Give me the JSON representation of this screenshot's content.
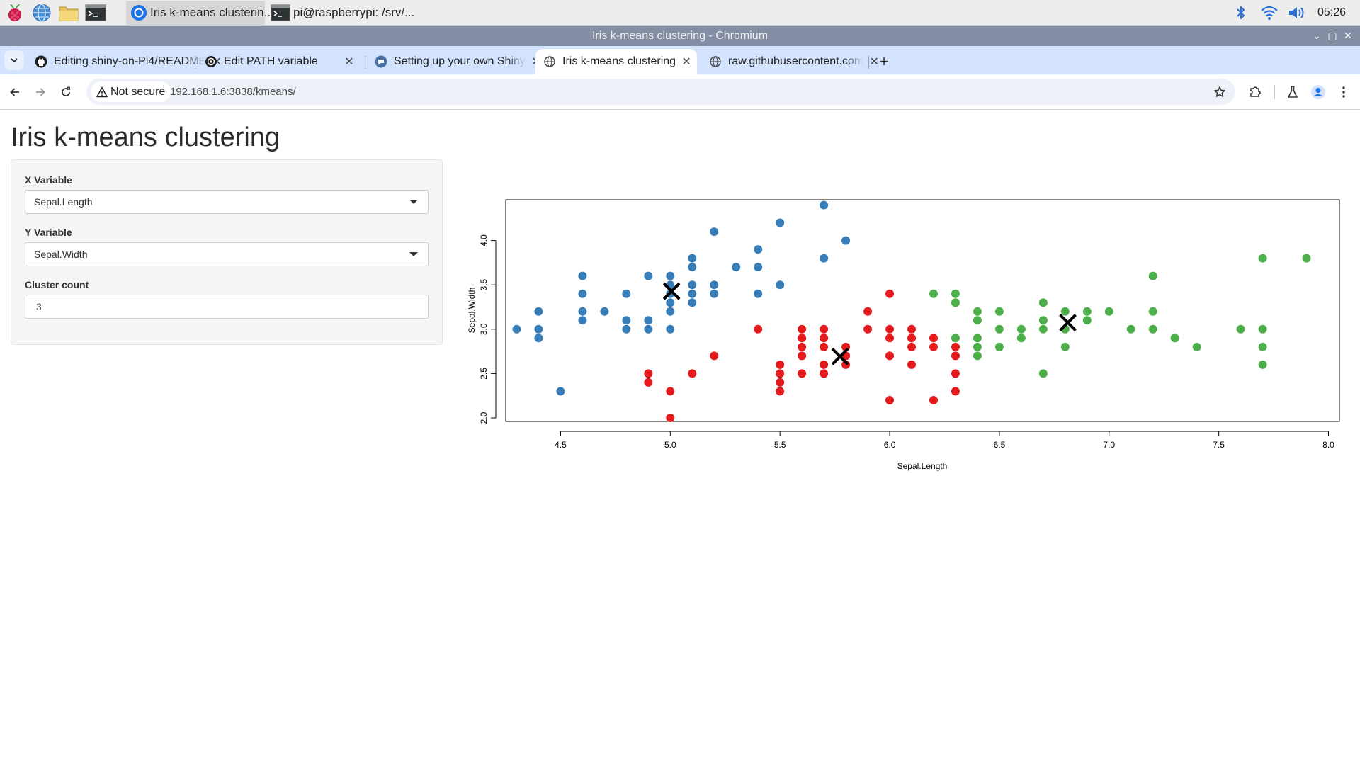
{
  "taskbar": {
    "launchers": [
      "raspberry-icon",
      "browser-globe-icon",
      "folder-icon",
      "terminal-icon"
    ],
    "tasks": [
      {
        "label": "Iris k-means clusterin...",
        "icon": "chromium-icon",
        "active": true
      },
      {
        "label": "pi@raspberrypi: /srv/...",
        "icon": "terminal-icon",
        "active": false
      }
    ],
    "tray": [
      "bluetooth-icon",
      "wifi-icon",
      "volume-icon"
    ],
    "clock": "05:26"
  },
  "window": {
    "title": "Iris k-means clustering - Chromium",
    "controls": [
      "⌄",
      "▢",
      "✕"
    ]
  },
  "tabs": [
    {
      "title": "Editing shiny-on-Pi4/README",
      "icon": "github-icon",
      "active": false
    },
    {
      "title": "Edit PATH variable",
      "icon": "openai-icon",
      "active": false
    },
    {
      "title": "Setting up your own Shiny",
      "icon": "chat-bubble-icon",
      "active": false
    },
    {
      "title": "Iris k-means clustering",
      "icon": "globe-icon",
      "active": true
    },
    {
      "title": "raw.githubusercontent.com",
      "icon": "globe-icon",
      "active": false
    }
  ],
  "toolbar": {
    "security_label": "Not secure",
    "url": "192.168.1.6:3838/kmeans/"
  },
  "app": {
    "title": "Iris k-means clustering",
    "x_label": "X Variable",
    "x_value": "Sepal.Length",
    "y_label": "Y Variable",
    "y_value": "Sepal.Width",
    "cluster_label": "Cluster count",
    "cluster_value": "3"
  },
  "chart_data": {
    "type": "scatter",
    "xlabel": "Sepal.Length",
    "ylabel": "Sepal.Width",
    "xlim": [
      4.25,
      8.05
    ],
    "ylim": [
      1.96,
      4.46
    ],
    "x_ticks": [
      "4.5",
      "5.0",
      "5.5",
      "6.0",
      "6.5",
      "7.0",
      "7.5",
      "8.0"
    ],
    "y_ticks": [
      "2.0",
      "2.5",
      "3.0",
      "3.5",
      "4.0"
    ],
    "series": [
      {
        "color": "#377eb8",
        "points": [
          [
            4.3,
            3.0
          ],
          [
            4.4,
            2.9
          ],
          [
            4.4,
            3.0
          ],
          [
            4.4,
            3.2
          ],
          [
            4.5,
            2.3
          ],
          [
            4.6,
            3.1
          ],
          [
            4.6,
            3.2
          ],
          [
            4.6,
            3.4
          ],
          [
            4.6,
            3.6
          ],
          [
            4.7,
            3.2
          ],
          [
            4.8,
            3.0
          ],
          [
            4.8,
            3.1
          ],
          [
            4.8,
            3.4
          ],
          [
            4.9,
            3.0
          ],
          [
            4.9,
            3.1
          ],
          [
            4.9,
            3.6
          ],
          [
            5.0,
            3.0
          ],
          [
            5.0,
            3.2
          ],
          [
            5.0,
            3.3
          ],
          [
            5.0,
            3.4
          ],
          [
            5.0,
            3.5
          ],
          [
            5.0,
            3.6
          ],
          [
            5.1,
            3.3
          ],
          [
            5.1,
            3.4
          ],
          [
            5.1,
            3.5
          ],
          [
            5.1,
            3.7
          ],
          [
            5.1,
            3.8
          ],
          [
            5.2,
            3.4
          ],
          [
            5.2,
            3.5
          ],
          [
            5.2,
            4.1
          ],
          [
            5.3,
            3.7
          ],
          [
            5.4,
            3.4
          ],
          [
            5.4,
            3.7
          ],
          [
            5.4,
            3.9
          ],
          [
            5.5,
            3.5
          ],
          [
            5.5,
            4.2
          ],
          [
            5.7,
            3.8
          ],
          [
            5.7,
            4.4
          ],
          [
            5.8,
            4.0
          ]
        ]
      },
      {
        "color": "#e41a1c",
        "points": [
          [
            4.9,
            2.4
          ],
          [
            4.9,
            2.5
          ],
          [
            5.0,
            2.0
          ],
          [
            5.0,
            2.3
          ],
          [
            5.1,
            2.5
          ],
          [
            5.2,
            2.7
          ],
          [
            5.4,
            3.0
          ],
          [
            5.5,
            2.3
          ],
          [
            5.5,
            2.4
          ],
          [
            5.5,
            2.5
          ],
          [
            5.5,
            2.6
          ],
          [
            5.6,
            2.5
          ],
          [
            5.6,
            2.7
          ],
          [
            5.6,
            2.8
          ],
          [
            5.6,
            2.9
          ],
          [
            5.6,
            3.0
          ],
          [
            5.7,
            2.5
          ],
          [
            5.7,
            2.6
          ],
          [
            5.7,
            2.8
          ],
          [
            5.7,
            2.9
          ],
          [
            5.7,
            3.0
          ],
          [
            5.8,
            2.6
          ],
          [
            5.8,
            2.7
          ],
          [
            5.8,
            2.8
          ],
          [
            5.9,
            3.0
          ],
          [
            5.9,
            3.2
          ],
          [
            6.0,
            2.2
          ],
          [
            6.0,
            2.7
          ],
          [
            6.0,
            2.9
          ],
          [
            6.0,
            3.0
          ],
          [
            6.0,
            3.4
          ],
          [
            6.1,
            2.6
          ],
          [
            6.1,
            2.8
          ],
          [
            6.1,
            2.9
          ],
          [
            6.1,
            3.0
          ],
          [
            6.2,
            2.2
          ],
          [
            6.2,
            2.8
          ],
          [
            6.2,
            2.9
          ],
          [
            6.3,
            2.3
          ],
          [
            6.3,
            2.5
          ],
          [
            6.3,
            2.7
          ],
          [
            6.3,
            2.8
          ]
        ]
      },
      {
        "color": "#4daf4a",
        "points": [
          [
            6.2,
            3.4
          ],
          [
            6.3,
            2.9
          ],
          [
            6.3,
            3.3
          ],
          [
            6.3,
            3.4
          ],
          [
            6.4,
            2.7
          ],
          [
            6.4,
            2.8
          ],
          [
            6.4,
            2.9
          ],
          [
            6.4,
            3.1
          ],
          [
            6.4,
            3.2
          ],
          [
            6.5,
            2.8
          ],
          [
            6.5,
            3.0
          ],
          [
            6.5,
            3.2
          ],
          [
            6.6,
            2.9
          ],
          [
            6.6,
            3.0
          ],
          [
            6.7,
            2.5
          ],
          [
            6.7,
            3.0
          ],
          [
            6.7,
            3.1
          ],
          [
            6.7,
            3.3
          ],
          [
            6.8,
            2.8
          ],
          [
            6.8,
            3.0
          ],
          [
            6.8,
            3.2
          ],
          [
            6.9,
            3.1
          ],
          [
            6.9,
            3.2
          ],
          [
            7.0,
            3.2
          ],
          [
            7.1,
            3.0
          ],
          [
            7.2,
            3.0
          ],
          [
            7.2,
            3.2
          ],
          [
            7.2,
            3.6
          ],
          [
            7.3,
            2.9
          ],
          [
            7.4,
            2.8
          ],
          [
            7.6,
            3.0
          ],
          [
            7.7,
            2.6
          ],
          [
            7.7,
            2.8
          ],
          [
            7.7,
            3.0
          ],
          [
            7.7,
            3.8
          ],
          [
            7.9,
            3.8
          ]
        ]
      }
    ],
    "centers": [
      [
        5.006,
        3.428
      ],
      [
        5.774,
        2.692
      ],
      [
        6.812,
        3.074
      ]
    ],
    "grid": false
  }
}
